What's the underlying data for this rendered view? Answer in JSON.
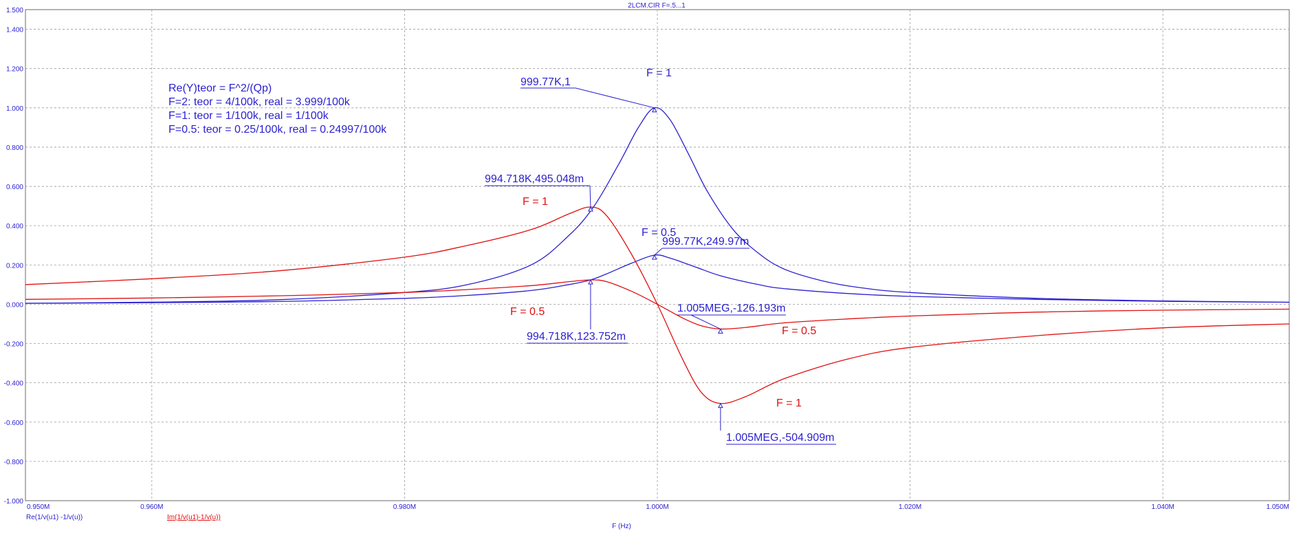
{
  "window": {
    "title": "2LCM.CIR F=.5...1"
  },
  "colors": {
    "blue": "#2a1fd0",
    "red": "#e01010",
    "grid": "#9a9a9a",
    "axis": "#6a6a6a"
  },
  "chart_data": {
    "type": "line",
    "title": "2LCM.CIR F=.5...1",
    "xlabel": "F (Hz)",
    "ylabel": "",
    "xlim": [
      950000,
      1050000
    ],
    "ylim": [
      -1.0,
      1.5
    ],
    "grid": true,
    "x_ticks": [
      {
        "value": 950000,
        "label": "0.950M"
      },
      {
        "value": 960000,
        "label": "0.960M"
      },
      {
        "value": 980000,
        "label": "0.980M"
      },
      {
        "value": 1000000,
        "label": "1.000M"
      },
      {
        "value": 1020000,
        "label": "1.020M"
      },
      {
        "value": 1040000,
        "label": "1.040M"
      },
      {
        "value": 1050000,
        "label": "1.050M"
      }
    ],
    "y_ticks": [
      {
        "value": 1.5,
        "label": "1.500"
      },
      {
        "value": 1.4,
        "label": "1.400"
      },
      {
        "value": 1.2,
        "label": "1.200"
      },
      {
        "value": 1.0,
        "label": "1.000"
      },
      {
        "value": 0.8,
        "label": "0.800"
      },
      {
        "value": 0.6,
        "label": "0.600"
      },
      {
        "value": 0.4,
        "label": "0.400"
      },
      {
        "value": 0.2,
        "label": "0.200"
      },
      {
        "value": 0.0,
        "label": "0.000"
      },
      {
        "value": -0.2,
        "label": "-0.200"
      },
      {
        "value": -0.4,
        "label": "-0.400"
      },
      {
        "value": -0.6,
        "label": "-0.600"
      },
      {
        "value": -0.8,
        "label": "-0.800"
      },
      {
        "value": -1.0,
        "label": "-1.000"
      }
    ],
    "legend": [
      {
        "label": "Re(1/v(u1) -1/v(u))",
        "color": "#2a1fd0"
      },
      {
        "label": "Im(1/v(u1)-1/v(u))",
        "color": "#e01010"
      }
    ],
    "series": [
      {
        "name": "Re(1/v(u1) -1/v(u))",
        "color": "#2a1fd0",
        "curve_label": "F = 1",
        "x": [
          950000,
          960000,
          970000,
          980000,
          985000,
          990000,
          993000,
          995000,
          997000,
          998500,
          999770,
          1001000,
          1002500,
          1004000,
          1006000,
          1008000,
          1010000,
          1013000,
          1016000,
          1020000,
          1030000,
          1040000,
          1050000
        ],
        "values": [
          0.005,
          0.011,
          0.023,
          0.06,
          0.1,
          0.2,
          0.35,
          0.5,
          0.72,
          0.9,
          1.0,
          0.94,
          0.76,
          0.57,
          0.38,
          0.26,
          0.18,
          0.12,
          0.085,
          0.06,
          0.03,
          0.017,
          0.01
        ]
      },
      {
        "name": "Re(1/v(u1) -1/v(u))",
        "color": "#2a1fd0",
        "curve_label": "F = 0.5",
        "x": [
          950000,
          960000,
          970000,
          980000,
          985000,
          990000,
          993000,
          994718,
          996000,
          998000,
          999770,
          1001000,
          1003000,
          1005000,
          1008000,
          1010000,
          1015000,
          1020000,
          1030000,
          1040000,
          1050000
        ],
        "values": [
          0.005,
          0.008,
          0.014,
          0.03,
          0.045,
          0.07,
          0.1,
          0.124,
          0.155,
          0.21,
          0.25,
          0.235,
          0.19,
          0.145,
          0.1,
          0.08,
          0.055,
          0.04,
          0.025,
          0.015,
          0.01
        ]
      },
      {
        "name": "Im(1/v(u1)-1/v(u))",
        "color": "#e01010",
        "curve_label": "F = 1",
        "x": [
          950000,
          960000,
          970000,
          980000,
          985000,
          990000,
          993000,
          994718,
          996000,
          998000,
          1000000,
          1002000,
          1003500,
          1005000,
          1007000,
          1010000,
          1015000,
          1020000,
          1030000,
          1040000,
          1050000
        ],
        "values": [
          0.1,
          0.13,
          0.17,
          0.24,
          0.3,
          0.38,
          0.46,
          0.495,
          0.45,
          0.25,
          0.0,
          -0.28,
          -0.45,
          -0.505,
          -0.47,
          -0.38,
          -0.28,
          -0.22,
          -0.16,
          -0.12,
          -0.1
        ]
      },
      {
        "name": "Im(1/v(u1)-1/v(u))",
        "color": "#e01010",
        "curve_label": "F = 0.5",
        "x": [
          950000,
          960000,
          970000,
          980000,
          985000,
          990000,
          993000,
          994718,
          996000,
          998000,
          1000000,
          1002000,
          1003500,
          1005000,
          1007000,
          1010000,
          1015000,
          1020000,
          1030000,
          1040000,
          1050000
        ],
        "values": [
          0.025,
          0.032,
          0.043,
          0.06,
          0.075,
          0.095,
          0.115,
          0.124,
          0.115,
          0.065,
          0.0,
          -0.07,
          -0.11,
          -0.126,
          -0.118,
          -0.095,
          -0.075,
          -0.06,
          -0.04,
          -0.03,
          -0.025
        ]
      }
    ],
    "markers": [
      {
        "text": "999.77K,1",
        "x": 999770,
        "y": 1.0,
        "color": "#2a1fd0"
      },
      {
        "text": "994.718K,495.048m",
        "x": 994718,
        "y": 0.495048,
        "color": "#2a1fd0"
      },
      {
        "text": "999.77K,249.97m",
        "x": 999770,
        "y": 0.24997,
        "color": "#2a1fd0"
      },
      {
        "text": "994.718K,123.752m",
        "x": 994718,
        "y": 0.123752,
        "color": "#2a1fd0"
      },
      {
        "text": "1.005MEG,-126.193m",
        "x": 1005000,
        "y": -0.126193,
        "color": "#2a1fd0"
      },
      {
        "text": "1.005MEG,-504.909m",
        "x": 1005000,
        "y": -0.504909,
        "color": "#2a1fd0"
      }
    ],
    "curve_labels": [
      {
        "text": "F = 1",
        "color": "#2a1fd0"
      },
      {
        "text": "F = 0.5",
        "color": "#2a1fd0"
      },
      {
        "text": "F = 1",
        "color": "#e01010"
      },
      {
        "text": "F = 0.5",
        "color": "#e01010"
      },
      {
        "text": "F = 0.5",
        "color": "#e01010"
      },
      {
        "text": "F = 1",
        "color": "#e01010"
      }
    ],
    "notes": [
      "Re(Y)teor = F^2/(Qp)",
      "F=2: teor = 4/100k, real = 3.999/100k",
      "F=1: teor = 1/100k, real = 1/100k",
      "F=0.5: teor = 0.25/100k, real = 0.24997/100k"
    ]
  }
}
